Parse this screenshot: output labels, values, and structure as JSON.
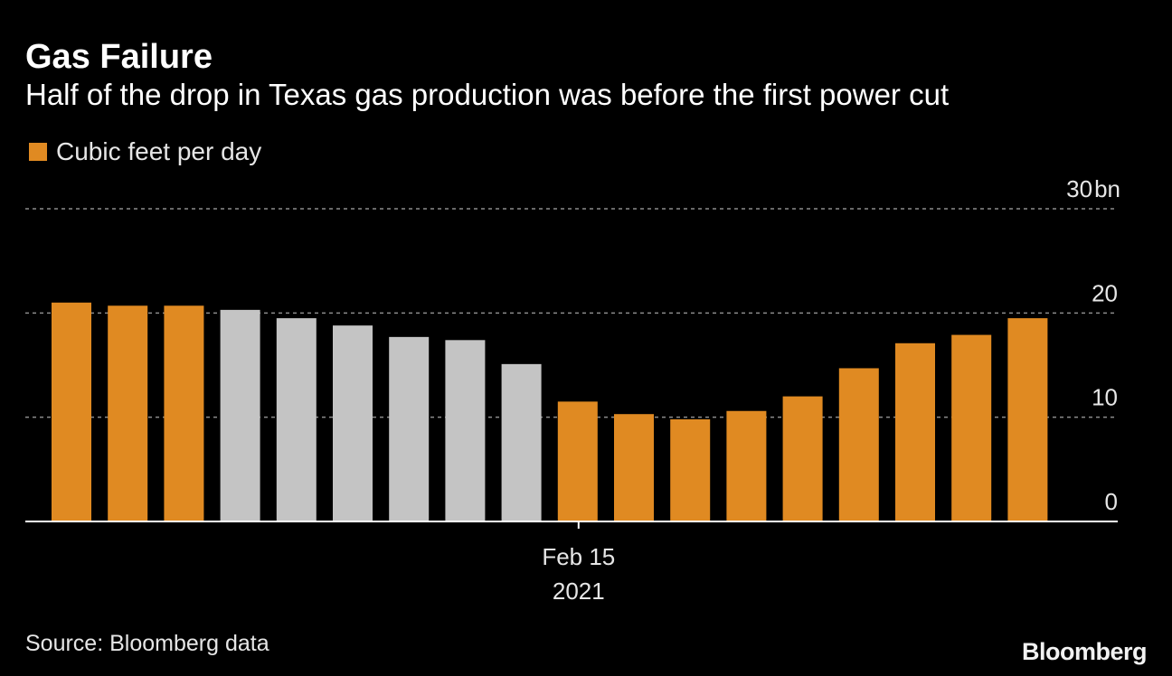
{
  "colors": {
    "background": "#000000",
    "highlight": "#e08a22",
    "neutral": "#c4c4c4",
    "grid": "#8c8c8c",
    "axis": "#ffffff"
  },
  "branding": {
    "logo_text": "Bloomberg"
  },
  "source_text": "Source: Bloomberg data",
  "chart_data": {
    "type": "bar",
    "title": "Gas Failure",
    "subtitle": "Half of the drop in Texas gas production was before the first power cut",
    "legend": [
      {
        "label": "Cubic feet per day",
        "color": "#e08a22"
      }
    ],
    "legend_position": "top-left",
    "y_axis_position": "right",
    "ylim": [
      0,
      30
    ],
    "y_ticks": [
      {
        "value": 0,
        "label": "0"
      },
      {
        "value": 10,
        "label": "10"
      },
      {
        "value": 20,
        "label": "20"
      },
      {
        "value": 30,
        "label": "30"
      }
    ],
    "y_unit_label": "bn",
    "grid": true,
    "x_tick": {
      "bar_index": 9.5,
      "label_line1": "Feb 15",
      "label_line2": "2021"
    },
    "bars": [
      {
        "value": 21.0,
        "highlight": true
      },
      {
        "value": 20.7,
        "highlight": true
      },
      {
        "value": 20.7,
        "highlight": true
      },
      {
        "value": 20.3,
        "highlight": false
      },
      {
        "value": 19.5,
        "highlight": false
      },
      {
        "value": 18.8,
        "highlight": false
      },
      {
        "value": 17.7,
        "highlight": false
      },
      {
        "value": 17.4,
        "highlight": false
      },
      {
        "value": 15.1,
        "highlight": false
      },
      {
        "value": 11.5,
        "highlight": true
      },
      {
        "value": 10.3,
        "highlight": true
      },
      {
        "value": 9.8,
        "highlight": true
      },
      {
        "value": 10.6,
        "highlight": true
      },
      {
        "value": 12.0,
        "highlight": true
      },
      {
        "value": 14.7,
        "highlight": true
      },
      {
        "value": 17.1,
        "highlight": true
      },
      {
        "value": 17.9,
        "highlight": true
      },
      {
        "value": 19.5,
        "highlight": true
      }
    ]
  }
}
